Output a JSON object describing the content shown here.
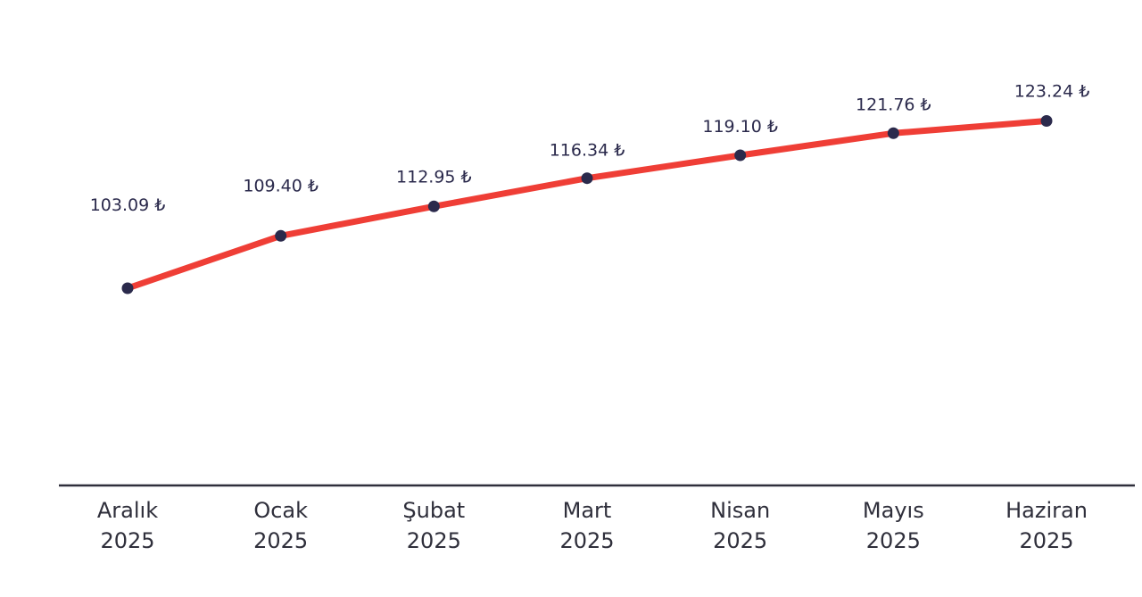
{
  "chart_data": {
    "type": "line",
    "categories": [
      [
        "Aralık",
        "2025"
      ],
      [
        "Ocak",
        "2025"
      ],
      [
        "Şubat",
        "2025"
      ],
      [
        "Mart",
        "2025"
      ],
      [
        "Nisan",
        "2025"
      ],
      [
        "Mayıs",
        "2025"
      ],
      [
        "Haziran",
        "2025"
      ]
    ],
    "series": [
      {
        "values": [
          103.09,
          109.4,
          112.95,
          116.34,
          119.1,
          121.76,
          123.24
        ],
        "labels": [
          "103.09 ₺",
          "109.40 ₺",
          "112.95 ₺",
          "116.34 ₺",
          "119.10 ₺",
          "121.76 ₺",
          "123.24 ₺"
        ]
      }
    ],
    "grid": false,
    "colors": {
      "line": "#ef3e36",
      "marker": "#2b2a4c",
      "axis": "#2f2f3b",
      "label": "#2b2a4c"
    }
  }
}
